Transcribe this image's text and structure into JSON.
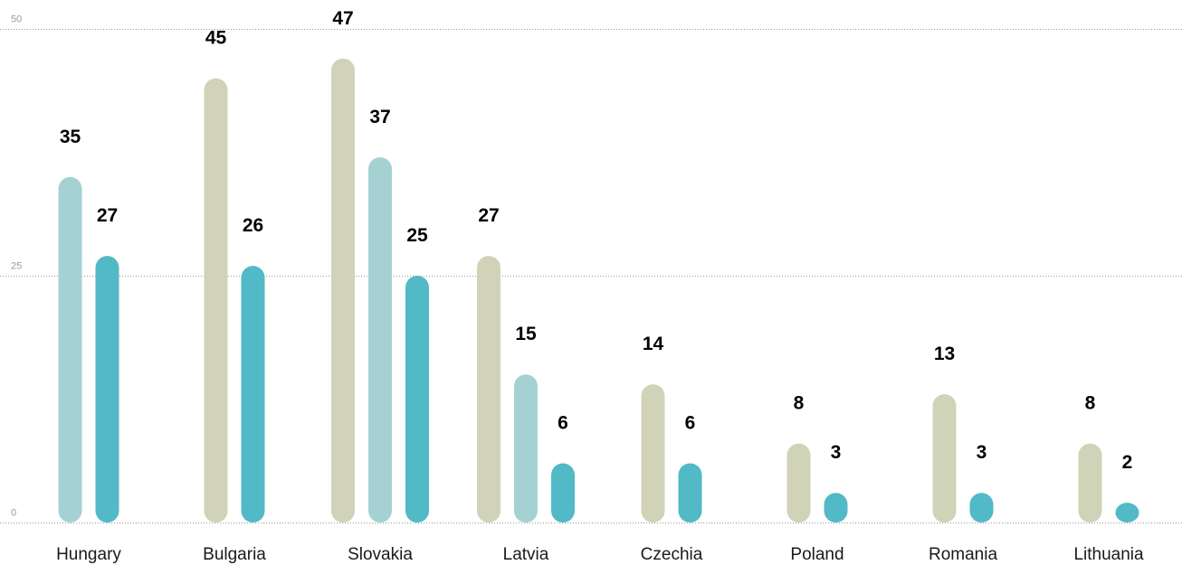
{
  "chart_data": {
    "type": "bar",
    "title": "",
    "xlabel": "",
    "ylabel": "",
    "ylim": [
      0,
      50
    ],
    "yticks": [
      0,
      25,
      50
    ],
    "grid": true,
    "legend": "none",
    "groups": [
      {
        "category": "Hungary",
        "bars": [
          {
            "value": 35,
            "color": "#a6d1d3"
          },
          {
            "value": 27,
            "color": "#52b9c6"
          }
        ]
      },
      {
        "category": "Bulgaria",
        "bars": [
          {
            "value": 45,
            "color": "#d0d3b8"
          },
          {
            "value": 26,
            "color": "#52b9c6"
          }
        ]
      },
      {
        "category": "Slovakia",
        "bars": [
          {
            "value": 47,
            "color": "#d0d3b8"
          },
          {
            "value": 37,
            "color": "#a6d1d3"
          },
          {
            "value": 25,
            "color": "#52b9c6"
          }
        ]
      },
      {
        "category": "Latvia",
        "bars": [
          {
            "value": 27,
            "color": "#d0d3b8"
          },
          {
            "value": 15,
            "color": "#a6d1d3"
          },
          {
            "value": 6,
            "color": "#52b9c6"
          }
        ]
      },
      {
        "category": "Czechia",
        "bars": [
          {
            "value": 14,
            "color": "#d0d3b8"
          },
          {
            "value": 6,
            "color": "#52b9c6"
          }
        ]
      },
      {
        "category": "Poland",
        "bars": [
          {
            "value": 8,
            "color": "#d0d3b8"
          },
          {
            "value": 3,
            "color": "#52b9c6"
          }
        ]
      },
      {
        "category": "Romania",
        "bars": [
          {
            "value": 13,
            "color": "#d0d3b8"
          },
          {
            "value": 3,
            "color": "#52b9c6"
          }
        ]
      },
      {
        "category": "Lithuania",
        "bars": [
          {
            "value": 8,
            "color": "#d0d3b8"
          },
          {
            "value": 2,
            "color": "#52b9c6"
          }
        ]
      }
    ]
  }
}
